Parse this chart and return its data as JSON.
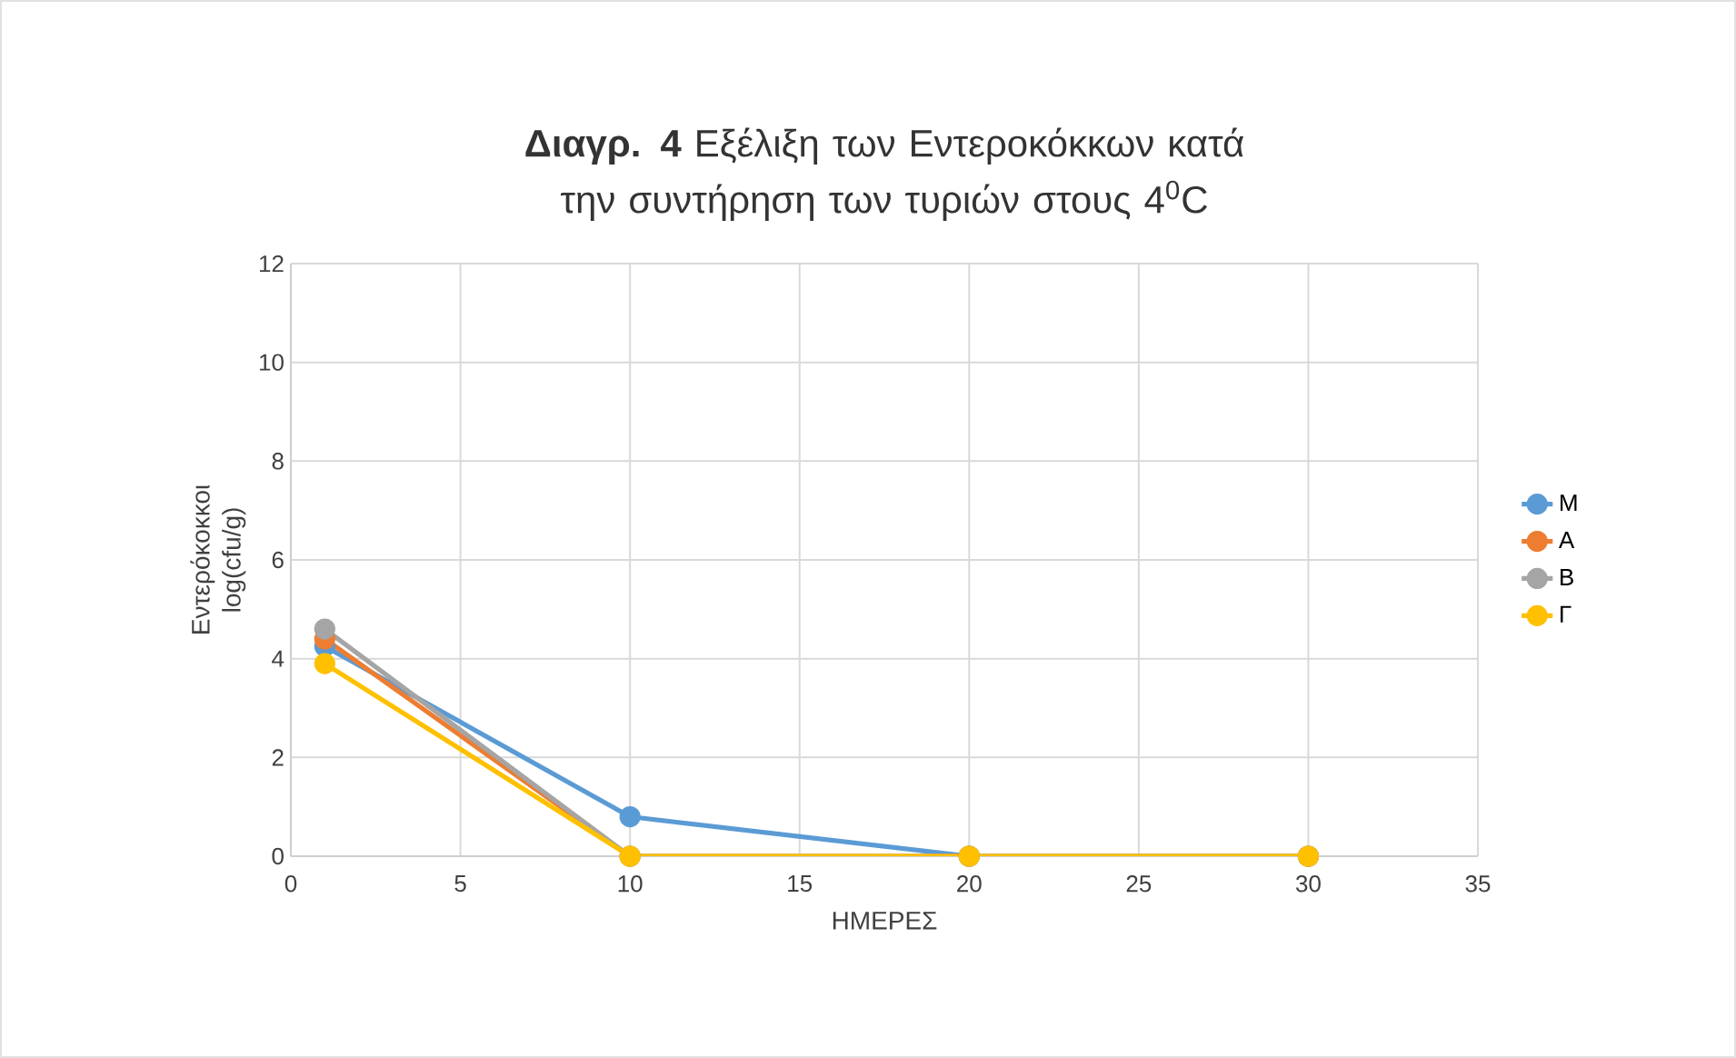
{
  "chart_data": {
    "type": "line",
    "title": "**Διαγρ. 4** Εξέλιξη των Εντεροκόκκων κατά την συντήρηση των τυριών στους 4$^{0}$C",
    "xlabel": "ΗΜΕΡΕΣ",
    "ylabel": "Εντερόκοκκοι log(cfu/g)",
    "x": [
      1,
      10,
      20,
      30
    ],
    "series": [
      {
        "name": "M",
        "color": "#5b9bd5",
        "values": [
          4.25,
          0.8,
          0,
          0
        ]
      },
      {
        "name": "A",
        "color": "#ed7d31",
        "values": [
          4.4,
          0,
          0,
          0
        ]
      },
      {
        "name": "B",
        "color": "#a5a5a5",
        "values": [
          4.6,
          0,
          0,
          0
        ]
      },
      {
        "name": "Γ",
        "color": "#ffc000",
        "values": [
          3.9,
          0,
          0,
          0
        ]
      }
    ],
    "xlim": [
      0,
      35
    ],
    "xticks": [
      0,
      5,
      10,
      15,
      20,
      25,
      30,
      35
    ],
    "ylim": [
      0,
      12
    ],
    "yticks": [
      0,
      2,
      4,
      6,
      8,
      10,
      12
    ],
    "grid": true,
    "legend": "right",
    "marker": "circle",
    "line_style": "solid"
  }
}
